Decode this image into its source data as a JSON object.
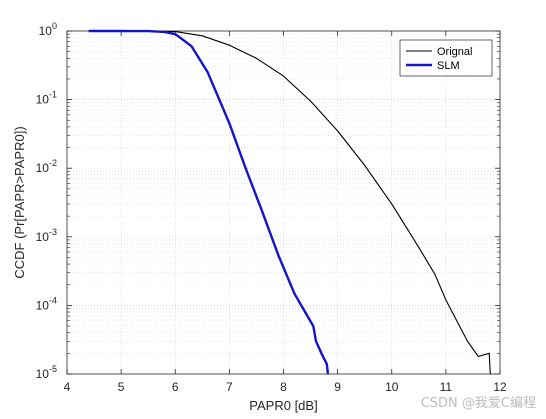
{
  "chart_data": {
    "type": "line",
    "xlabel": "PAPR0 [dB]",
    "ylabel": "CCDF (Pr[PAPR>PAPR0])",
    "xlim": [
      4,
      12
    ],
    "ylim_log10": [
      -5,
      0
    ],
    "y_scale": "log",
    "x_ticks": [
      "4",
      "5",
      "6",
      "7",
      "8",
      "9",
      "10",
      "11",
      "12"
    ],
    "y_ticks": [
      {
        "base": "10",
        "exp": "0"
      },
      {
        "base": "10",
        "exp": "-1"
      },
      {
        "base": "10",
        "exp": "-2"
      },
      {
        "base": "10",
        "exp": "-3"
      },
      {
        "base": "10",
        "exp": "-4"
      },
      {
        "base": "10",
        "exp": "-5"
      }
    ],
    "grid": true,
    "legend_position": "top-right",
    "series": [
      {
        "name": "Orignal",
        "color": "#000000",
        "x": [
          4.4,
          5.0,
          5.5,
          6.0,
          6.5,
          7.0,
          7.5,
          8.0,
          8.5,
          9.0,
          9.5,
          10.0,
          10.5,
          10.8,
          11.0,
          11.2,
          11.4,
          11.6,
          11.8,
          11.82
        ],
        "y": [
          1.0,
          1.0,
          0.998,
          0.98,
          0.85,
          0.62,
          0.4,
          0.22,
          0.095,
          0.035,
          0.011,
          0.003,
          0.0007,
          0.00028,
          0.00012,
          6e-05,
          3e-05,
          1.8e-05,
          2e-05,
          1e-05
        ]
      },
      {
        "name": "SLM",
        "color": "#1414c8",
        "x": [
          4.4,
          5.0,
          5.5,
          5.8,
          6.0,
          6.3,
          6.6,
          7.0,
          7.3,
          7.6,
          7.9,
          8.2,
          8.4,
          8.55,
          8.6,
          8.7,
          8.8,
          8.82
        ],
        "y": [
          1.0,
          1.0,
          0.995,
          0.97,
          0.9,
          0.6,
          0.25,
          0.045,
          0.01,
          0.0024,
          0.00055,
          0.00015,
          8e-05,
          5e-05,
          3e-05,
          2e-05,
          1.4e-05,
          1e-05
        ]
      }
    ]
  },
  "watermark": "CSDN @我爱C编程"
}
